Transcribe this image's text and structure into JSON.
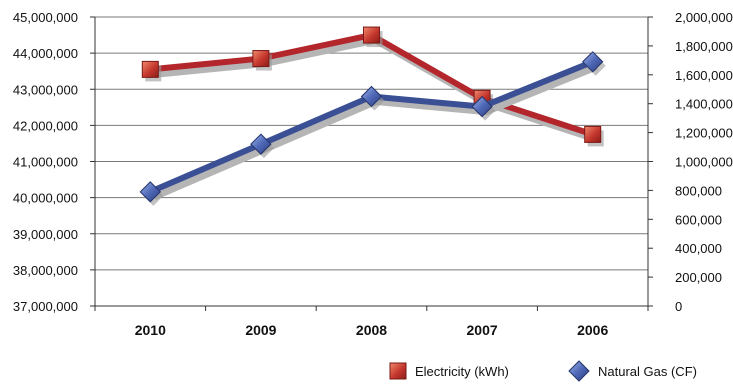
{
  "chart_data": {
    "type": "line",
    "categories": [
      "2010",
      "2009",
      "2008",
      "2007",
      "2006"
    ],
    "series": [
      {
        "name": "Electricity (kWh)",
        "axis": "left",
        "color": "#b3262b",
        "marker": "square",
        "values": [
          43550000,
          43850000,
          44500000,
          42750000,
          41750000
        ]
      },
      {
        "name": "Natural Gas (CF)",
        "axis": "right",
        "color": "#3a4f94",
        "marker": "diamond",
        "values": [
          790000,
          1120000,
          1450000,
          1380000,
          1690000
        ]
      }
    ],
    "y_left": {
      "ylim": [
        37000000,
        45000000
      ],
      "ticks": [
        37000000,
        38000000,
        39000000,
        40000000,
        41000000,
        42000000,
        43000000,
        44000000,
        45000000
      ],
      "tick_labels": [
        "37,000,000",
        "38,000,000",
        "39,000,000",
        "40,000,000",
        "41,000,000",
        "42,000,000",
        "43,000,000",
        "44,000,000",
        "45,000,000"
      ]
    },
    "y_right": {
      "ylim": [
        0,
        2000000
      ],
      "ticks": [
        0,
        200000,
        400000,
        600000,
        800000,
        1000000,
        1200000,
        1400000,
        1600000,
        1800000,
        2000000
      ],
      "tick_labels": [
        "0",
        "200,000",
        "400,000",
        "600,000",
        "800,000",
        "1,000,000",
        "1,200,000",
        "1,400,000",
        "1,600,000",
        "1,800,000",
        "2,000,000"
      ]
    },
    "grid": true,
    "legend": "bottom-right"
  }
}
